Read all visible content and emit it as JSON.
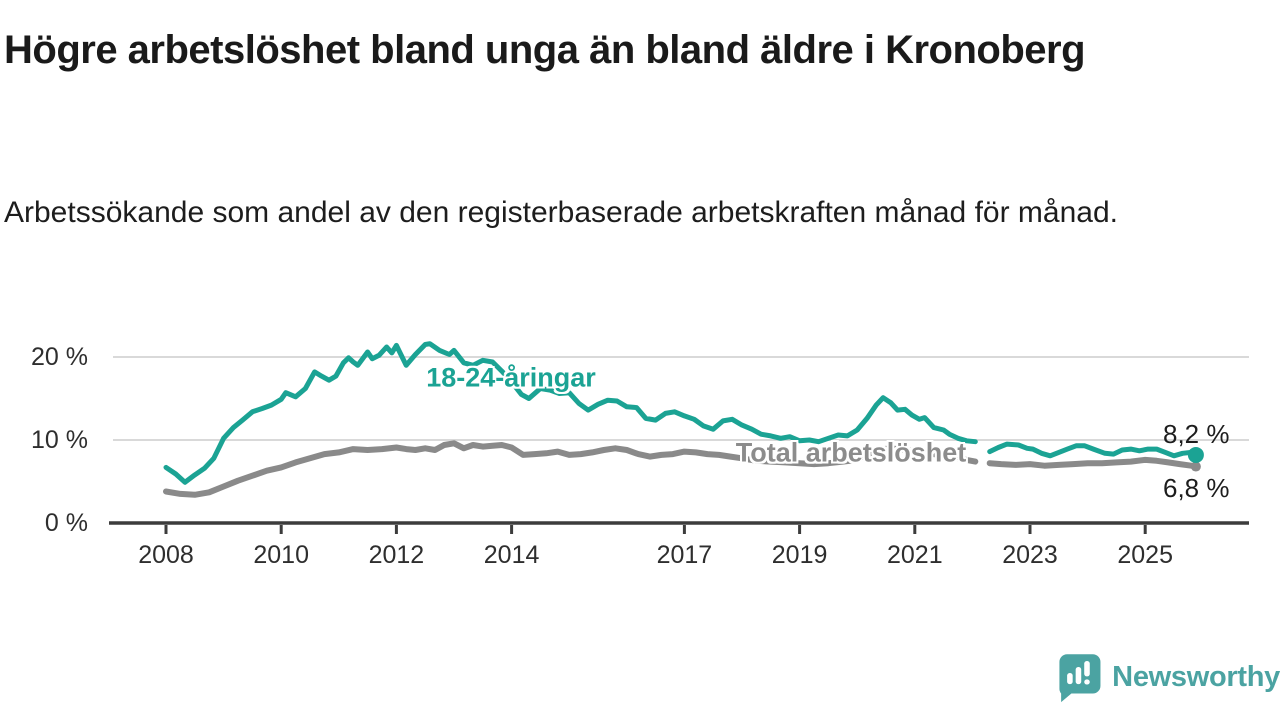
{
  "header": {
    "title": "Högre arbetslöshet bland unga än bland äldre i Kronoberg",
    "subtitle": "Arbetssökande som andel av den registerbaserade arbetskraften månad för månad."
  },
  "chart_data": {
    "type": "line",
    "title": "Högre arbetslöshet bland unga än bland äldre i Kronoberg",
    "subtitle": "Arbetssökande som andel av den registerbaserade arbetskraften månad för månad.",
    "x_unit": "decimal_year",
    "xlim": [
      2007.85,
      2026.3
    ],
    "ylim": [
      0,
      24
    ],
    "grid": "horizontal-only",
    "legend_position": "inline-labels-on-lines",
    "colors": {
      "youth_line": "#1BA394",
      "total_line": "#8A8A8A",
      "total_label": "#8C8C8C",
      "axis": "#3c3c3c",
      "gridline": "#d9d9d9",
      "tick_text": "#2e2e2e"
    },
    "yticks": [
      {
        "label": "0 %",
        "v": 0
      },
      {
        "label": "10 %",
        "v": 10
      },
      {
        "label": "20 %",
        "v": 20
      }
    ],
    "xticks": [
      {
        "label": "2008",
        "t": 2008
      },
      {
        "label": "2010",
        "t": 2010
      },
      {
        "label": "2012",
        "t": 2012
      },
      {
        "label": "2014",
        "t": 2014
      },
      {
        "label": "2017",
        "t": 2017
      },
      {
        "label": "2019",
        "t": 2019
      },
      {
        "label": "2021",
        "t": 2021
      },
      {
        "label": "2023",
        "t": 2023
      },
      {
        "label": "2025",
        "t": 2025
      }
    ],
    "series": [
      {
        "name": "total",
        "label": "Total arbetslöshet",
        "color": "#8A8A8A",
        "line_width": 6,
        "end_label": "6,8 %",
        "end_value": 6.8,
        "end_dot_radius": 5,
        "segments": [
          [
            [
              2008.0,
              3.8
            ],
            [
              2008.25,
              3.5
            ],
            [
              2008.5,
              3.4
            ],
            [
              2008.75,
              3.7
            ],
            [
              2009.0,
              4.4
            ],
            [
              2009.25,
              5.1
            ],
            [
              2009.5,
              5.7
            ],
            [
              2009.75,
              6.3
            ],
            [
              2010.0,
              6.7
            ],
            [
              2010.25,
              7.3
            ],
            [
              2010.5,
              7.8
            ],
            [
              2010.75,
              8.3
            ],
            [
              2011.0,
              8.5
            ],
            [
              2011.25,
              8.9
            ],
            [
              2011.5,
              8.8
            ],
            [
              2011.75,
              8.9
            ],
            [
              2012.0,
              9.1
            ],
            [
              2012.17,
              8.9
            ],
            [
              2012.33,
              8.8
            ],
            [
              2012.5,
              9.0
            ],
            [
              2012.67,
              8.8
            ],
            [
              2012.83,
              9.4
            ],
            [
              2013.0,
              9.6
            ],
            [
              2013.17,
              9.0
            ],
            [
              2013.33,
              9.4
            ],
            [
              2013.5,
              9.2
            ],
            [
              2013.67,
              9.3
            ],
            [
              2013.83,
              9.4
            ],
            [
              2014.0,
              9.1
            ],
            [
              2014.2,
              8.2
            ],
            [
              2014.4,
              8.3
            ],
            [
              2014.6,
              8.4
            ],
            [
              2014.8,
              8.6
            ],
            [
              2015.0,
              8.2
            ],
            [
              2015.2,
              8.3
            ],
            [
              2015.4,
              8.5
            ],
            [
              2015.6,
              8.8
            ],
            [
              2015.8,
              9.0
            ],
            [
              2016.0,
              8.8
            ],
            [
              2016.2,
              8.3
            ],
            [
              2016.4,
              8.0
            ],
            [
              2016.6,
              8.2
            ],
            [
              2016.8,
              8.3
            ],
            [
              2017.0,
              8.6
            ],
            [
              2017.2,
              8.5
            ],
            [
              2017.4,
              8.3
            ],
            [
              2017.6,
              8.2
            ],
            [
              2017.8,
              8.0
            ],
            [
              2018.0,
              7.8
            ],
            [
              2018.25,
              7.5
            ],
            [
              2018.5,
              7.4
            ],
            [
              2018.75,
              7.3
            ],
            [
              2019.0,
              7.2
            ],
            [
              2019.25,
              7.1
            ],
            [
              2019.5,
              7.2
            ],
            [
              2019.75,
              7.4
            ],
            [
              2020.0,
              7.6
            ],
            [
              2020.25,
              8.4
            ],
            [
              2020.45,
              8.9
            ],
            [
              2020.6,
              9.0
            ],
            [
              2020.8,
              8.8
            ],
            [
              2021.0,
              8.7
            ],
            [
              2021.25,
              8.4
            ],
            [
              2021.5,
              8.1
            ],
            [
              2021.75,
              7.8
            ],
            [
              2021.9,
              7.6
            ],
            [
              2022.05,
              7.4
            ]
          ],
          [
            [
              2022.3,
              7.2
            ],
            [
              2022.5,
              7.1
            ],
            [
              2022.75,
              7.0
            ],
            [
              2023.0,
              7.1
            ],
            [
              2023.25,
              6.9
            ],
            [
              2023.5,
              7.0
            ],
            [
              2023.75,
              7.1
            ],
            [
              2024.0,
              7.2
            ],
            [
              2024.25,
              7.2
            ],
            [
              2024.5,
              7.3
            ],
            [
              2024.75,
              7.4
            ],
            [
              2025.0,
              7.6
            ],
            [
              2025.2,
              7.5
            ],
            [
              2025.4,
              7.3
            ],
            [
              2025.6,
              7.1
            ],
            [
              2025.8,
              6.9
            ],
            [
              2025.88,
              6.8
            ]
          ]
        ]
      },
      {
        "name": "youth",
        "label": "18-24-åringar",
        "color": "#1BA394",
        "line_width": 5,
        "end_label": "8,2 %",
        "end_value": 8.2,
        "end_dot_radius": 8,
        "segments": [
          [
            [
              2008.0,
              6.7
            ],
            [
              2008.17,
              5.9
            ],
            [
              2008.33,
              4.9
            ],
            [
              2008.5,
              5.8
            ],
            [
              2008.67,
              6.6
            ],
            [
              2008.83,
              7.8
            ],
            [
              2009.0,
              10.2
            ],
            [
              2009.17,
              11.5
            ],
            [
              2009.33,
              12.4
            ],
            [
              2009.5,
              13.4
            ],
            [
              2009.67,
              13.8
            ],
            [
              2009.83,
              14.2
            ],
            [
              2010.0,
              14.9
            ],
            [
              2010.08,
              15.7
            ],
            [
              2010.25,
              15.2
            ],
            [
              2010.42,
              16.2
            ],
            [
              2010.58,
              18.2
            ],
            [
              2010.7,
              17.7
            ],
            [
              2010.83,
              17.2
            ],
            [
              2010.95,
              17.7
            ],
            [
              2011.08,
              19.3
            ],
            [
              2011.17,
              19.9
            ],
            [
              2011.25,
              19.4
            ],
            [
              2011.33,
              19.0
            ],
            [
              2011.5,
              20.6
            ],
            [
              2011.58,
              19.8
            ],
            [
              2011.7,
              20.2
            ],
            [
              2011.83,
              21.2
            ],
            [
              2011.92,
              20.5
            ],
            [
              2012.0,
              21.4
            ],
            [
              2012.17,
              19.0
            ],
            [
              2012.33,
              20.3
            ],
            [
              2012.5,
              21.5
            ],
            [
              2012.58,
              21.6
            ],
            [
              2012.75,
              20.8
            ],
            [
              2012.92,
              20.3
            ],
            [
              2013.0,
              20.8
            ],
            [
              2013.17,
              19.3
            ],
            [
              2013.33,
              19.0
            ],
            [
              2013.5,
              19.6
            ],
            [
              2013.67,
              19.4
            ],
            [
              2013.83,
              18.3
            ],
            [
              2014.0,
              17.0
            ],
            [
              2014.17,
              15.5
            ],
            [
              2014.3,
              15.0
            ],
            [
              2014.5,
              16.2
            ],
            [
              2014.67,
              16.0
            ],
            [
              2014.83,
              15.6
            ],
            [
              2015.0,
              15.7
            ],
            [
              2015.17,
              14.4
            ],
            [
              2015.33,
              13.6
            ],
            [
              2015.5,
              14.3
            ],
            [
              2015.67,
              14.8
            ],
            [
              2015.83,
              14.7
            ],
            [
              2016.0,
              14.0
            ],
            [
              2016.17,
              13.9
            ],
            [
              2016.33,
              12.6
            ],
            [
              2016.5,
              12.4
            ],
            [
              2016.67,
              13.2
            ],
            [
              2016.83,
              13.4
            ],
            [
              2017.0,
              12.9
            ],
            [
              2017.17,
              12.5
            ],
            [
              2017.33,
              11.7
            ],
            [
              2017.5,
              11.3
            ],
            [
              2017.67,
              12.3
            ],
            [
              2017.83,
              12.5
            ],
            [
              2018.0,
              11.8
            ],
            [
              2018.17,
              11.3
            ],
            [
              2018.33,
              10.7
            ],
            [
              2018.5,
              10.5
            ],
            [
              2018.67,
              10.2
            ],
            [
              2018.83,
              10.4
            ],
            [
              2019.0,
              9.9
            ],
            [
              2019.17,
              10.0
            ],
            [
              2019.33,
              9.8
            ],
            [
              2019.5,
              10.2
            ],
            [
              2019.67,
              10.6
            ],
            [
              2019.83,
              10.5
            ],
            [
              2020.0,
              11.2
            ],
            [
              2020.17,
              12.6
            ],
            [
              2020.33,
              14.2
            ],
            [
              2020.45,
              15.1
            ],
            [
              2020.58,
              14.5
            ],
            [
              2020.7,
              13.6
            ],
            [
              2020.83,
              13.7
            ],
            [
              2020.95,
              13.0
            ],
            [
              2021.08,
              12.5
            ],
            [
              2021.17,
              12.7
            ],
            [
              2021.33,
              11.5
            ],
            [
              2021.5,
              11.2
            ],
            [
              2021.6,
              10.7
            ],
            [
              2021.75,
              10.2
            ],
            [
              2021.9,
              9.9
            ],
            [
              2022.05,
              9.8
            ]
          ],
          [
            [
              2022.3,
              8.6
            ],
            [
              2022.45,
              9.1
            ],
            [
              2022.6,
              9.5
            ],
            [
              2022.8,
              9.4
            ],
            [
              2022.95,
              9.0
            ],
            [
              2023.05,
              8.9
            ],
            [
              2023.2,
              8.4
            ],
            [
              2023.35,
              8.1
            ],
            [
              2023.5,
              8.5
            ],
            [
              2023.65,
              8.9
            ],
            [
              2023.8,
              9.3
            ],
            [
              2023.95,
              9.3
            ],
            [
              2024.1,
              8.9
            ],
            [
              2024.3,
              8.4
            ],
            [
              2024.45,
              8.3
            ],
            [
              2024.6,
              8.8
            ],
            [
              2024.75,
              8.9
            ],
            [
              2024.9,
              8.7
            ],
            [
              2025.05,
              8.9
            ],
            [
              2025.2,
              8.9
            ],
            [
              2025.35,
              8.5
            ],
            [
              2025.5,
              8.1
            ],
            [
              2025.65,
              8.4
            ],
            [
              2025.8,
              8.5
            ],
            [
              2025.88,
              8.2
            ]
          ]
        ]
      }
    ],
    "annotations": {
      "youth_end_label": "8,2 %",
      "total_end_label": "6,8 %",
      "data_gap": "early 2022"
    }
  },
  "branding": {
    "logo_text": "Newsworthy",
    "logo_color": "#4BA3A2",
    "logo_icon": "bar-chart-speech-bubble-icon"
  }
}
